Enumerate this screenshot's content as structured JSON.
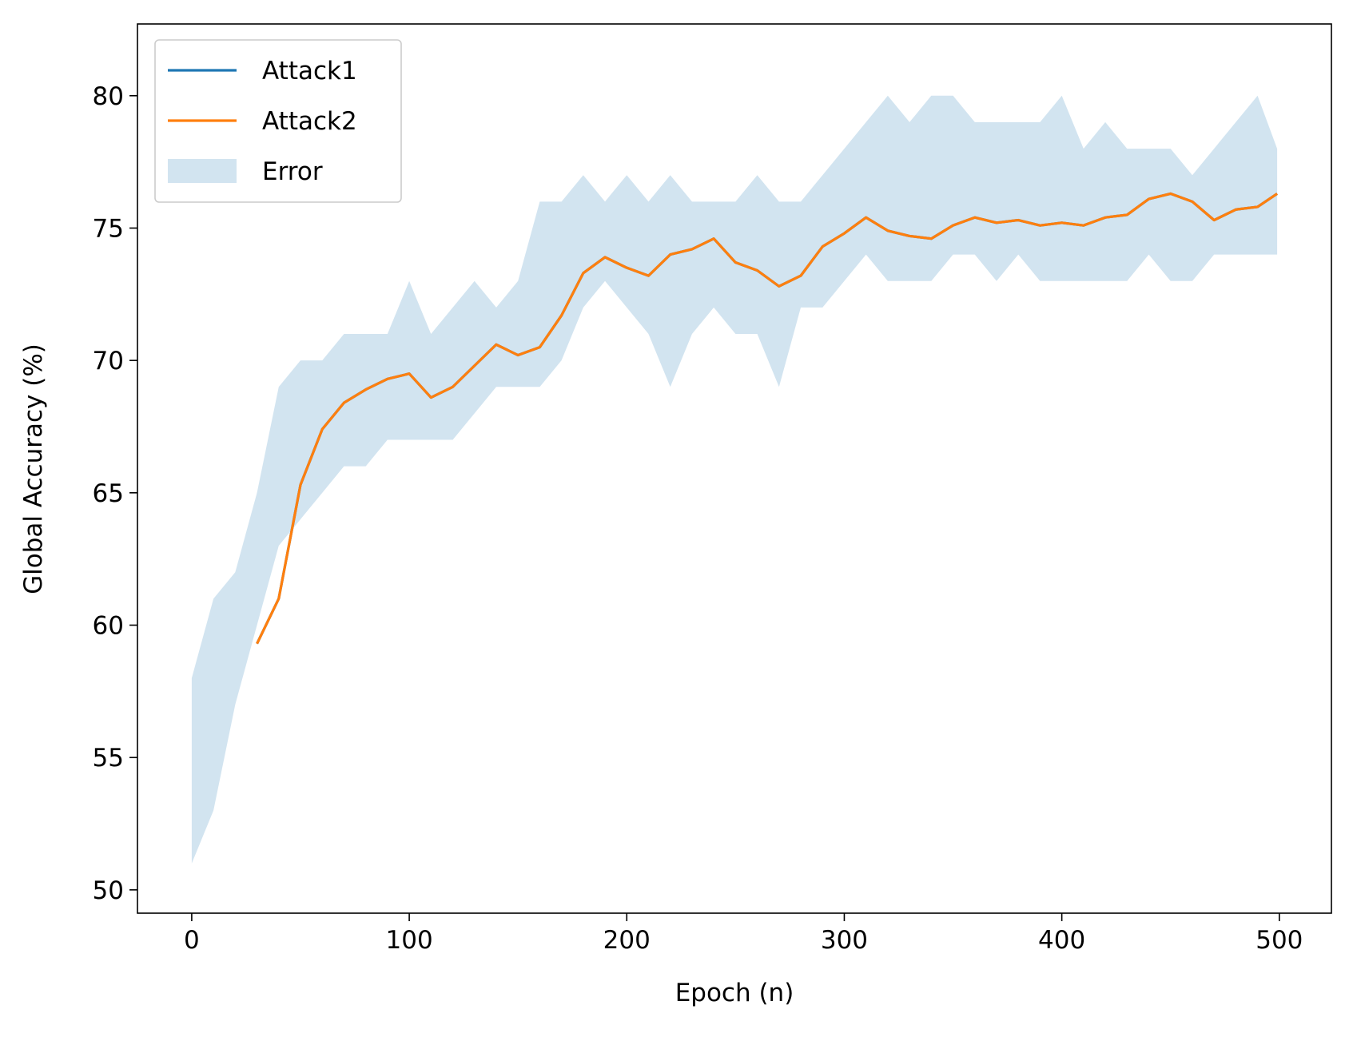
{
  "chart_data": {
    "type": "line",
    "xlabel": "Epoch (n)",
    "ylabel": "Global Accuracy (%)",
    "x": [
      0,
      10,
      20,
      30,
      40,
      50,
      60,
      70,
      80,
      90,
      100,
      110,
      120,
      130,
      140,
      150,
      160,
      170,
      180,
      190,
      200,
      210,
      220,
      230,
      240,
      250,
      260,
      270,
      280,
      290,
      300,
      310,
      320,
      330,
      340,
      350,
      360,
      370,
      380,
      390,
      400,
      410,
      420,
      430,
      440,
      450,
      460,
      470,
      480,
      490,
      499
    ],
    "series": [
      {
        "name": "Attack1",
        "color": "#1f77b4",
        "values": [
          null,
          null,
          null,
          59.3,
          61.0,
          65.3,
          67.4,
          68.4,
          68.9,
          69.3,
          69.5,
          68.6,
          69.0,
          69.8,
          70.6,
          70.2,
          70.5,
          71.7,
          73.3,
          73.9,
          73.5,
          73.2,
          74.0,
          74.2,
          74.6,
          73.7,
          73.4,
          72.8,
          73.2,
          74.3,
          74.8,
          75.4,
          74.9,
          74.7,
          74.6,
          75.1,
          75.4,
          75.2,
          75.3,
          75.1,
          75.2,
          75.1,
          75.4,
          75.5,
          76.1,
          76.3,
          76.0,
          75.3,
          75.7,
          75.8,
          76.3
        ]
      },
      {
        "name": "Attack2",
        "color": "#ff7f0e",
        "values": [
          null,
          null,
          null,
          59.3,
          61.0,
          65.3,
          67.4,
          68.4,
          68.9,
          69.3,
          69.5,
          68.6,
          69.0,
          69.8,
          70.6,
          70.2,
          70.5,
          71.7,
          73.3,
          73.9,
          73.5,
          73.2,
          74.0,
          74.2,
          74.6,
          73.7,
          73.4,
          72.8,
          73.2,
          74.3,
          74.8,
          75.4,
          74.9,
          74.7,
          74.6,
          75.1,
          75.4,
          75.2,
          75.3,
          75.1,
          75.2,
          75.1,
          75.4,
          75.5,
          76.1,
          76.3,
          76.0,
          75.3,
          75.7,
          75.8,
          76.3
        ]
      }
    ],
    "error": {
      "name": "Error",
      "color": "#1f77b4",
      "lower": [
        51,
        53,
        57,
        60,
        63,
        64,
        65,
        66,
        66,
        67,
        67,
        67,
        67,
        68,
        69,
        69,
        69,
        70,
        72,
        73,
        72,
        71,
        69,
        71,
        72,
        71,
        71,
        69,
        72,
        72,
        73,
        74,
        73,
        73,
        73,
        74,
        74,
        73,
        74,
        73,
        73,
        73,
        73,
        73,
        74,
        73,
        73,
        74,
        74,
        74,
        74
      ],
      "upper": [
        58,
        61,
        62,
        65,
        69,
        70,
        70,
        71,
        71,
        71,
        73,
        71,
        72,
        73,
        72,
        73,
        76,
        76,
        77,
        76,
        77,
        76,
        77,
        76,
        76,
        76,
        77,
        76,
        76,
        77,
        78,
        79,
        80,
        79,
        80,
        80,
        79,
        79,
        79,
        79,
        80,
        78,
        79,
        78,
        78,
        78,
        77,
        78,
        79,
        80,
        78
      ]
    },
    "xlim": [
      -24.95,
      523.95
    ],
    "ylim": [
      49.12,
      82.71
    ],
    "xticks": [
      0,
      100,
      200,
      300,
      400,
      500
    ],
    "yticks": [
      50,
      55,
      60,
      65,
      70,
      75,
      80
    ],
    "legend": "upper left"
  }
}
